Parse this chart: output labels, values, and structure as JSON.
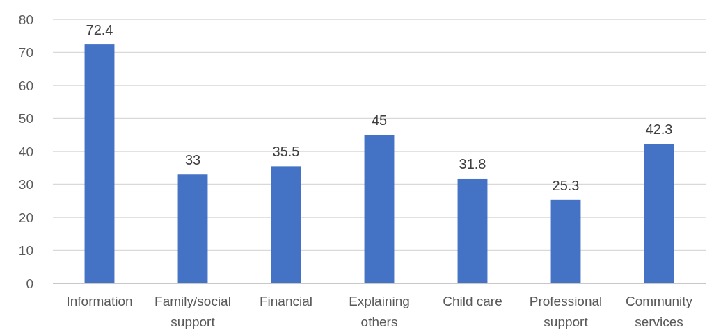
{
  "chart_data": {
    "type": "bar",
    "categories": [
      "Information",
      "Family/social support",
      "Financial",
      "Explaining others",
      "Child care",
      "Professional support",
      "Community services"
    ],
    "values": [
      72.4,
      33,
      35.5,
      45,
      31.8,
      25.3,
      42.3
    ],
    "color": "#4472c4",
    "ylim": [
      0,
      80
    ],
    "yticks": [
      0,
      10,
      20,
      30,
      40,
      50,
      60,
      70,
      80
    ],
    "grid": "y",
    "data_labels": true
  }
}
